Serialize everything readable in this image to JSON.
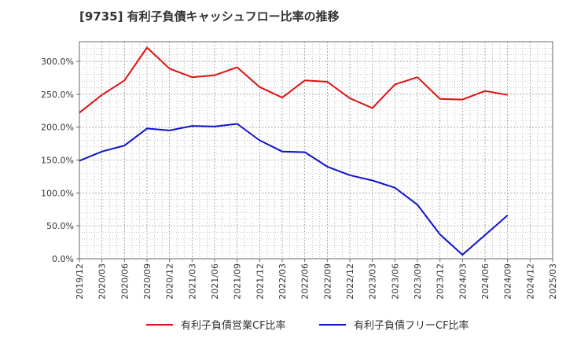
{
  "chart_data": {
    "type": "line",
    "title": "[9735]  有利子負債キャッシュフロー比率の推移",
    "xlabel": "",
    "ylabel": "",
    "x": [
      "2019/12",
      "2020/03",
      "2020/06",
      "2020/09",
      "2020/12",
      "2021/03",
      "2021/06",
      "2021/09",
      "2021/12",
      "2022/03",
      "2022/06",
      "2022/09",
      "2022/12",
      "2023/03",
      "2023/06",
      "2023/09",
      "2023/12",
      "2024/03",
      "2024/06",
      "2024/09",
      "2024/12",
      "2025/03"
    ],
    "ylim": [
      0,
      330
    ],
    "y_ticks": [
      0,
      50,
      100,
      150,
      200,
      250,
      300
    ],
    "y_tick_labels": [
      "0.0%",
      "50.0%",
      "100.0%",
      "150.0%",
      "200.0%",
      "250.0%",
      "300.0%"
    ],
    "grid": true,
    "legend_position": "bottom",
    "series": [
      {
        "name": "有利子負債営業CF比率",
        "color": "#dd1111",
        "values": [
          222,
          249,
          271,
          321,
          289,
          276,
          279,
          291,
          261,
          245,
          271,
          269,
          244,
          229,
          265,
          276,
          243,
          242,
          255,
          249,
          null,
          null
        ]
      },
      {
        "name": "有利子負債フリーCF比率",
        "color": "#1111cc",
        "values": [
          149,
          163,
          172,
          198,
          195,
          202,
          201,
          205,
          180,
          163,
          162,
          140,
          127,
          119,
          108,
          82,
          37,
          6,
          36,
          66,
          null,
          null
        ]
      }
    ]
  }
}
